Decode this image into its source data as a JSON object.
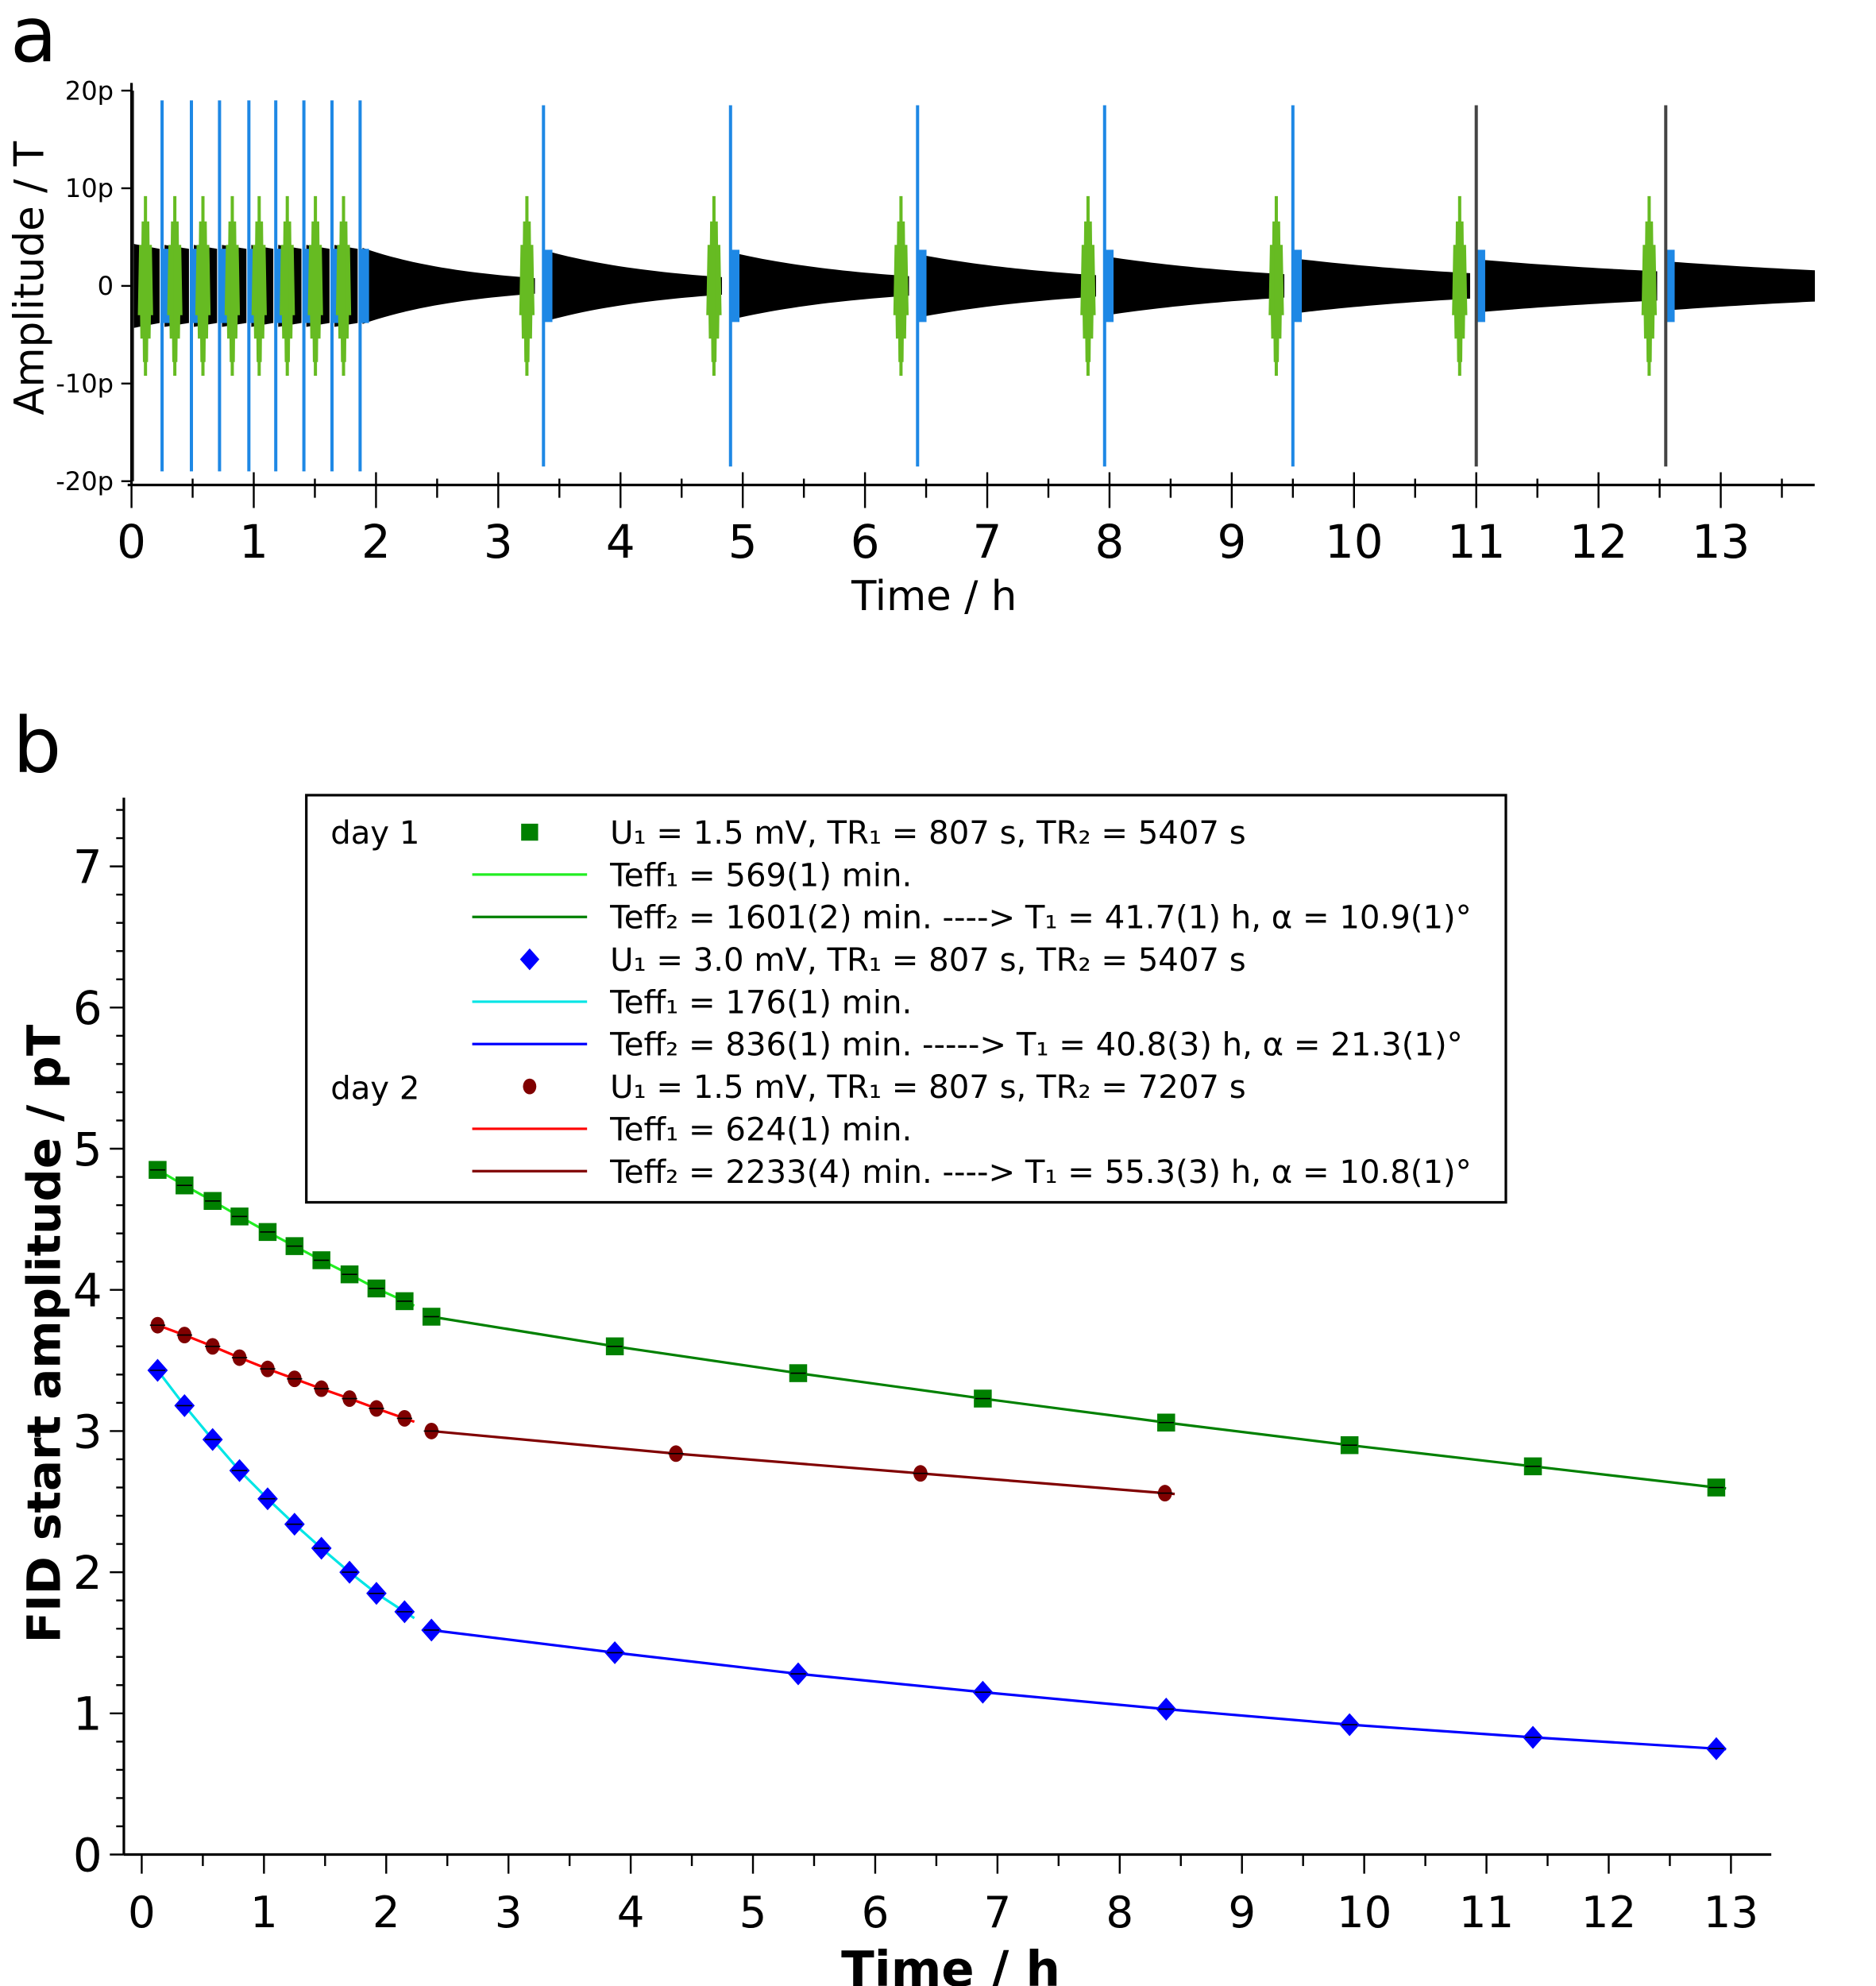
{
  "panel_labels": {
    "a": "a",
    "b": "b"
  },
  "chart_data": [
    {
      "type": "line",
      "title": "",
      "xlabel": "Time / h",
      "ylabel": "Amplitude / T",
      "xlim": [
        0,
        13.8
      ],
      "ylim": [
        -20,
        20
      ],
      "xticks": [
        "0",
        "1",
        "2",
        "3",
        "4",
        "5",
        "6",
        "7",
        "8",
        "9",
        "10",
        "11",
        "12",
        "13"
      ],
      "yticks": [
        {
          "value": 20,
          "label": "20p"
        },
        {
          "value": 10,
          "label": "10p"
        },
        {
          "value": 0,
          "label": "0"
        },
        {
          "value": -10,
          "label": "-10p"
        },
        {
          "value": -20,
          "label": "-20p"
        }
      ],
      "colors": {
        "signal": "#000000",
        "pulse1": "#66bb22",
        "pulse2": "#1e88e5",
        "pulse_dark": "#444444"
      },
      "pulses": [
        {
          "t": 0.25,
          "amp": 19
        },
        {
          "t": 0.49,
          "amp": 19
        },
        {
          "t": 0.72,
          "amp": 19
        },
        {
          "t": 0.96,
          "amp": 19
        },
        {
          "t": 1.18,
          "amp": 19
        },
        {
          "t": 1.41,
          "amp": 19
        },
        {
          "t": 1.64,
          "amp": 19
        },
        {
          "t": 1.87,
          "amp": 19
        },
        {
          "t": 3.37,
          "amp": 18.5
        },
        {
          "t": 4.9,
          "amp": 18.5
        },
        {
          "t": 6.43,
          "amp": 18.5
        },
        {
          "t": 7.96,
          "amp": 18.5
        },
        {
          "t": 9.5,
          "amp": 18.5
        },
        {
          "t": 11.0,
          "amp": 18.5,
          "dark": true
        },
        {
          "t": 12.55,
          "amp": 18.5,
          "dark": true
        }
      ],
      "segments": [
        {
          "t0": 0.02,
          "t1": 0.23,
          "a0": 4.3,
          "a1": 3.8
        },
        {
          "t0": 0.27,
          "t1": 0.47,
          "a0": 4.2,
          "a1": 3.8
        },
        {
          "t0": 0.51,
          "t1": 0.7,
          "a0": 4.2,
          "a1": 3.8
        },
        {
          "t0": 0.74,
          "t1": 0.94,
          "a0": 4.2,
          "a1": 3.8
        },
        {
          "t0": 0.98,
          "t1": 1.16,
          "a0": 4.2,
          "a1": 3.8
        },
        {
          "t0": 1.2,
          "t1": 1.39,
          "a0": 4.2,
          "a1": 3.8
        },
        {
          "t0": 1.43,
          "t1": 1.62,
          "a0": 4.2,
          "a1": 3.8
        },
        {
          "t0": 1.66,
          "t1": 1.85,
          "a0": 4.2,
          "a1": 3.8
        },
        {
          "t0": 1.89,
          "t1": 3.3,
          "a0": 3.9,
          "a1": 0.8
        },
        {
          "t0": 3.39,
          "t1": 4.83,
          "a0": 3.6,
          "a1": 0.9
        },
        {
          "t0": 4.92,
          "t1": 6.36,
          "a0": 3.4,
          "a1": 1.0
        },
        {
          "t0": 6.45,
          "t1": 7.89,
          "a0": 3.2,
          "a1": 1.1
        },
        {
          "t0": 7.98,
          "t1": 9.43,
          "a0": 3.0,
          "a1": 1.2
        },
        {
          "t0": 9.52,
          "t1": 10.95,
          "a0": 2.8,
          "a1": 1.3
        },
        {
          "t0": 11.02,
          "t1": 12.48,
          "a0": 2.7,
          "a1": 1.5
        },
        {
          "t0": 12.57,
          "t1": 13.77,
          "a0": 2.5,
          "a1": 1.6
        }
      ]
    },
    {
      "type": "scatter",
      "title": "",
      "xlabel": "Time / h",
      "ylabel": "FID start amplitude / pT",
      "xlim": [
        0,
        13.3
      ],
      "ylim": [
        0,
        7.5
      ],
      "xticks": [
        "0",
        "1",
        "2",
        "3",
        "4",
        "5",
        "6",
        "7",
        "8",
        "9",
        "10",
        "11",
        "12",
        "13"
      ],
      "yticks": [
        "0",
        "1",
        "2",
        "3",
        "4",
        "5",
        "6",
        "7"
      ],
      "legend": {
        "placement": "top",
        "groups": [
          "day 1",
          "day 2"
        ],
        "entries": [
          {
            "text": "U₁ = 1.5 mV, TR₁ = 807 s, TR₂ = 5407 s",
            "kind": "marker",
            "marker": "square",
            "color": "#008000"
          },
          {
            "text": "Teff₁ = 569(1) min.",
            "kind": "line",
            "color": "#22ee22"
          },
          {
            "text": "Teff₂ = 1601(2) min. ----> T₁ = 41.7(1) h, α = 10.9(1)°",
            "kind": "line",
            "color": "#008000"
          },
          {
            "text": "U₁ = 3.0 mV, TR₁ = 807 s, TR₂ = 5407 s",
            "kind": "marker",
            "marker": "diamond",
            "color": "#0000ff"
          },
          {
            "text": "Teff₁ = 176(1) min.",
            "kind": "line",
            "color": "#00e5e5"
          },
          {
            "text": "Teff₂ = 836(1) min. -----> T₁ = 40.8(3) h, α = 21.3(1)°",
            "kind": "line",
            "color": "#0000ff"
          },
          {
            "text": "U₁ = 1.5 mV, TR₁ = 807 s, TR₂ = 7207 s",
            "kind": "marker",
            "marker": "circle",
            "color": "#800000"
          },
          {
            "text": "Teff₁ = 624(1) min.",
            "kind": "line",
            "color": "#ff0000"
          },
          {
            "text": "Teff₂ = 2233(4) min. ----> T₁ = 55.3(3) h, α = 10.8(1)°",
            "kind": "line",
            "color": "#800000"
          }
        ]
      },
      "series": [
        {
          "name": "day 1, U1 = 1.5 mV",
          "marker": "square",
          "color": "#008000",
          "fit1_color": "#22ee22",
          "fit2_color": "#008000",
          "x": [
            0.13,
            0.35,
            0.58,
            0.8,
            1.03,
            1.25,
            1.47,
            1.7,
            1.92,
            2.15,
            2.37,
            3.87,
            5.37,
            6.88,
            8.38,
            9.88,
            11.38,
            12.88
          ],
          "y": [
            4.85,
            4.74,
            4.63,
            4.52,
            4.41,
            4.31,
            4.21,
            4.11,
            4.01,
            3.92,
            3.81,
            3.6,
            3.41,
            3.23,
            3.06,
            2.9,
            2.75,
            2.6
          ],
          "split": 10
        },
        {
          "name": "day 1, U1 = 3.0 mV",
          "marker": "diamond",
          "color": "#0000ff",
          "fit1_color": "#00e5e5",
          "fit2_color": "#0000ff",
          "x": [
            0.13,
            0.35,
            0.58,
            0.8,
            1.03,
            1.25,
            1.47,
            1.7,
            1.92,
            2.15,
            2.37,
            3.87,
            5.37,
            6.88,
            8.38,
            9.88,
            11.38,
            12.88
          ],
          "y": [
            3.43,
            3.18,
            2.94,
            2.72,
            2.52,
            2.34,
            2.17,
            2.0,
            1.85,
            1.72,
            1.59,
            1.43,
            1.28,
            1.15,
            1.03,
            0.92,
            0.83,
            0.75
          ],
          "split": 10
        },
        {
          "name": "day 2, U1 = 1.5 mV",
          "marker": "circle",
          "color": "#800000",
          "fit1_color": "#ff0000",
          "fit2_color": "#800000",
          "x": [
            0.13,
            0.35,
            0.58,
            0.8,
            1.03,
            1.25,
            1.47,
            1.7,
            1.92,
            2.15,
            2.37,
            4.37,
            6.37,
            8.37
          ],
          "y": [
            3.75,
            3.68,
            3.6,
            3.52,
            3.44,
            3.37,
            3.3,
            3.23,
            3.16,
            3.09,
            3.0,
            2.84,
            2.7,
            2.56
          ],
          "split": 10
        }
      ]
    }
  ]
}
